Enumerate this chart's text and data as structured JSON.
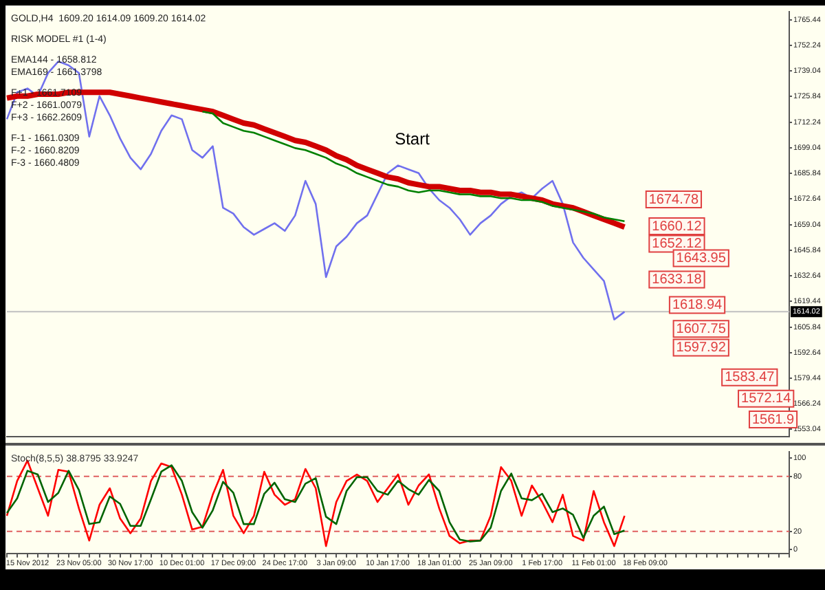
{
  "chart_data": [
    {
      "type": "line",
      "categories": [
        null,
        null,
        null,
        null,
        null,
        null,
        null,
        null,
        null,
        null,
        null,
        null,
        null,
        null,
        null,
        null,
        null,
        null,
        null,
        null,
        null,
        null,
        null,
        null,
        null,
        null,
        null,
        null,
        null,
        null,
        null,
        null,
        null,
        null,
        null,
        null,
        null,
        null,
        null,
        null,
        null,
        null,
        null,
        null,
        null,
        null,
        null,
        null,
        null,
        null,
        null,
        null,
        null,
        null,
        null,
        null,
        null,
        null,
        null,
        null,
        null,
        null,
        null,
        null,
        null,
        null,
        null,
        null,
        null,
        null,
        null,
        null,
        null,
        null,
        null,
        null,
        null
      ],
      "series": [
        {
          "color": "#7070ee",
          "values": [
            1714,
            1728,
            1730,
            1726,
            1738,
            1744,
            1742,
            1738,
            1705,
            1726,
            1716,
            1704,
            1694,
            1688,
            1696,
            1708,
            1716,
            1714,
            1698,
            1694,
            1700,
            1668,
            1665,
            1658,
            1654,
            1657,
            1660,
            1656,
            1664,
            1682,
            1670,
            1632,
            1648,
            1653,
            1660,
            1664,
            1675,
            1686,
            1690,
            1688,
            1686,
            1678,
            1672,
            1668,
            1662,
            1654,
            1660,
            1664,
            1670,
            1674,
            1676,
            1673,
            1678,
            1682,
            1670,
            1650,
            1642,
            1636,
            1630,
            1610,
            1614,
            null,
            null,
            null,
            null,
            null,
            null,
            null,
            null,
            null,
            null,
            null,
            null,
            null,
            null,
            null,
            null
          ]
        },
        {
          "color": "#d00000",
          "values": [
            1725,
            1726,
            1726,
            1727,
            1727,
            1727,
            1728,
            1728,
            1728,
            1728,
            1728,
            1727,
            1726,
            1725,
            1724,
            1723,
            1722,
            1721,
            1720,
            1719,
            1718,
            1716,
            1714,
            1712,
            1711,
            1709,
            1707,
            1705,
            1703,
            1702,
            1700,
            1698,
            1695,
            1693,
            1690,
            1688,
            1686,
            1684,
            1683,
            1681,
            1680,
            1679,
            1679,
            1678,
            1677,
            1677,
            1676,
            1676,
            1675,
            1675,
            1674,
            1673,
            1672,
            1670,
            1669,
            1668,
            1666,
            1664,
            1662,
            1660,
            1658,
            null,
            null,
            null,
            null,
            null,
            null,
            null,
            null,
            null,
            null,
            null,
            null,
            null,
            null,
            null,
            null
          ]
        },
        {
          "color": "#008000",
          "values": [
            null,
            null,
            null,
            null,
            null,
            null,
            null,
            null,
            null,
            null,
            null,
            null,
            null,
            null,
            null,
            null,
            null,
            null,
            null,
            1718,
            1717,
            1712,
            1710,
            1708,
            1707,
            1705,
            1703,
            1701,
            1699,
            1698,
            1696,
            1694,
            1691,
            1689,
            1686,
            1684,
            1682,
            1680,
            1679,
            1677,
            1676,
            1677,
            1677,
            1676,
            1675,
            1675,
            1674,
            1674,
            1673,
            1673,
            1672,
            1672,
            1671,
            1669,
            1668,
            1667,
            1666,
            1665,
            1663,
            1662,
            1661,
            null,
            null,
            null,
            null,
            null,
            null,
            null,
            null,
            null,
            null,
            null,
            null,
            null,
            null,
            null,
            null
          ]
        }
      ],
      "ylim": [
        1549,
        1770
      ],
      "yticks": [
        1553.04,
        1566.24,
        1579.44,
        1592.64,
        1605.84,
        1619.44,
        1632.64,
        1645.84,
        1659.04,
        1672.64,
        1685.84,
        1699.04,
        1712.24,
        1725.84,
        1739.04,
        1752.24,
        1765.44
      ],
      "tick_labels": "y",
      "grid": false,
      "legend": false,
      "marker": "none",
      "ref_lines": [
        {
          "axis": "y",
          "value": 1614.02,
          "label": "1614.02",
          "color": "#c0c0c0"
        }
      ],
      "annotations": [
        "GOLD,H4  1609.20 1614.09 1609.20 1614.02",
        "RISK MODEL #1 (1-4)",
        "EMA144 - 1658.812",
        "EMA169 - 1661.3798",
        "F+1 - 1661.7109",
        "F+2 - 1661.0079",
        "F+3 - 1662.2609",
        "F-1 - 1661.0309",
        "F-2 - 1660.8209",
        "F-3 - 1660.4809",
        "Start",
        "1674.78",
        "1660.12",
        "1652.12",
        "1643.95",
        "1633.18",
        "1618.94",
        "1607.75",
        "1597.92",
        "1583.47",
        "1572.14",
        "1561.9"
      ]
    },
    {
      "type": "line",
      "title": "Stoch(8,5,5) 38.8795 33.9247",
      "categories": [
        null,
        null,
        "15 Nov 2012",
        null,
        null,
        null,
        null,
        "23 Nov 05:00",
        null,
        null,
        null,
        null,
        "30 Nov 17:00",
        null,
        null,
        null,
        null,
        "10 Dec 01:00",
        null,
        null,
        null,
        null,
        "17 Dec 09:00",
        null,
        null,
        null,
        null,
        "24 Dec 17:00",
        null,
        null,
        null,
        null,
        "3 Jan 09:00",
        null,
        null,
        null,
        null,
        "10 Jan 17:00",
        null,
        null,
        null,
        null,
        "18 Jan 01:00",
        null,
        null,
        null,
        null,
        "25 Jan 09:00",
        null,
        null,
        null,
        null,
        "1 Feb 17:00",
        null,
        null,
        null,
        null,
        "11 Feb 01:00",
        null,
        null,
        null,
        null,
        "18 Feb 09:00",
        null,
        null,
        null,
        null,
        null,
        null,
        null,
        null,
        null,
        null,
        null,
        null,
        null,
        null
      ],
      "series": [
        {
          "color": "#ff0000",
          "values": [
            37,
            75,
            97,
            67,
            37,
            87,
            85,
            45,
            10,
            49,
            67,
            34,
            18,
            34,
            75,
            94,
            90,
            60,
            22,
            25,
            60,
            87,
            37,
            18,
            37,
            85,
            60,
            49,
            55,
            88,
            67,
            4,
            52,
            75,
            82,
            75,
            52,
            67,
            82,
            49,
            70,
            82,
            45,
            15,
            7,
            10,
            10,
            37,
            90,
            75,
            37,
            70,
            52,
            30,
            60,
            15,
            10,
            64,
            30,
            4,
            37,
            null,
            null,
            null,
            null,
            null,
            null,
            null,
            null,
            null,
            null,
            null,
            null,
            null,
            null,
            null,
            null
          ]
        },
        {
          "color": "#006400",
          "values": [
            40,
            56,
            86,
            82,
            52,
            62,
            86,
            65,
            28,
            30,
            58,
            50,
            26,
            26,
            55,
            85,
            92,
            75,
            41,
            24,
            43,
            74,
            62,
            28,
            28,
            61,
            73,
            55,
            52,
            72,
            78,
            36,
            28,
            64,
            79,
            79,
            64,
            60,
            75,
            66,
            60,
            76,
            64,
            30,
            11,
            9,
            10,
            24,
            64,
            83,
            56,
            54,
            61,
            41,
            45,
            38,
            13,
            37,
            47,
            17,
            21,
            null,
            null,
            null,
            null,
            null,
            null,
            null,
            null,
            null,
            null,
            null,
            null,
            null,
            null,
            null,
            null
          ]
        }
      ],
      "ylim": [
        -4,
        107
      ],
      "yticks": [
        0,
        20,
        80,
        100
      ],
      "grid": false,
      "legend": false,
      "marker": "none",
      "ref_lines": [
        {
          "axis": "y",
          "value": 20,
          "color": "#e06060",
          "line_style": "dashed"
        },
        {
          "axis": "y",
          "value": 80,
          "color": "#e06060",
          "line_style": "dashed"
        }
      ]
    }
  ]
}
